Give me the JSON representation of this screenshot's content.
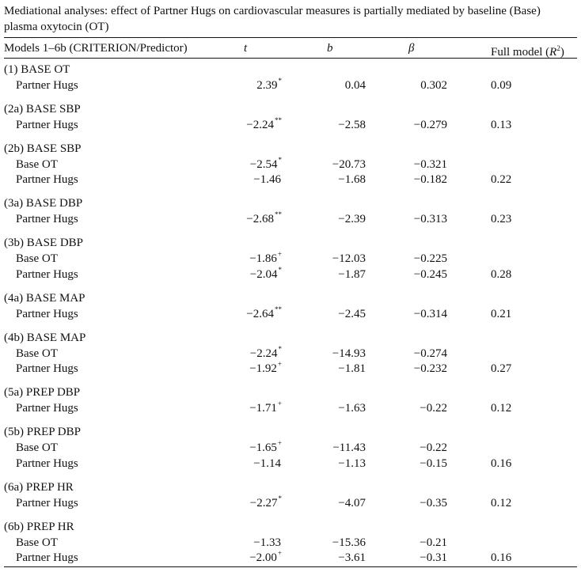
{
  "caption": "Mediational analyses: effect of Partner Hugs on cardiovascular measures is partially mediated by baseline (Base) plasma oxytocin (OT)",
  "headers": {
    "models": "Models 1–6b (CRITERION/Predictor)",
    "t": "t",
    "b": "b",
    "beta": "β",
    "r2_prefix": "Full model (",
    "r2_r": "R",
    "r2_sup": "2",
    "r2_suffix": ")"
  },
  "groups": [
    {
      "label": "(1) BASE OT",
      "rows": [
        {
          "predictor": "Partner Hugs",
          "t": "2.39",
          "sig": "*",
          "b": "0.04",
          "beta": "0.302",
          "r2": "0.09"
        }
      ]
    },
    {
      "label": "(2a) BASE SBP",
      "rows": [
        {
          "predictor": "Partner Hugs",
          "t": "−2.24",
          "sig": "**",
          "b": "−2.58",
          "beta": "−0.279",
          "r2": "0.13"
        }
      ]
    },
    {
      "label": "(2b) BASE SBP",
      "rows": [
        {
          "predictor": "Base OT",
          "t": "−2.54",
          "sig": "*",
          "b": "−20.73",
          "beta": "−0.321",
          "r2": ""
        },
        {
          "predictor": "Partner Hugs",
          "t": "−1.46",
          "sig": "",
          "b": "−1.68",
          "beta": "−0.182",
          "r2": "0.22"
        }
      ]
    },
    {
      "label": "(3a) BASE DBP",
      "rows": [
        {
          "predictor": "Partner Hugs",
          "t": "−2.68",
          "sig": "**",
          "b": "−2.39",
          "beta": "−0.313",
          "r2": "0.23"
        }
      ]
    },
    {
      "label": "(3b) BASE DBP",
      "rows": [
        {
          "predictor": "Base OT",
          "t": "−1.86",
          "sig": "+",
          "b": "−12.03",
          "beta": "−0.225",
          "r2": ""
        },
        {
          "predictor": "Partner Hugs",
          "t": "−2.04",
          "sig": "*",
          "b": "−1.87",
          "beta": "−0.245",
          "r2": "0.28"
        }
      ]
    },
    {
      "label": "(4a) BASE MAP",
      "rows": [
        {
          "predictor": "Partner Hugs",
          "t": "−2.64",
          "sig": "**",
          "b": "−2.45",
          "beta": "−0.314",
          "r2": "0.21"
        }
      ]
    },
    {
      "label": "(4b) BASE MAP",
      "rows": [
        {
          "predictor": "Base OT",
          "t": "−2.24",
          "sig": "*",
          "b": "−14.93",
          "beta": "−0.274",
          "r2": ""
        },
        {
          "predictor": "Partner Hugs",
          "t": "−1.92",
          "sig": "+",
          "b": "−1.81",
          "beta": "−0.232",
          "r2": "0.27"
        }
      ]
    },
    {
      "label": "(5a) PREP DBP",
      "rows": [
        {
          "predictor": "Partner Hugs",
          "t": "−1.71",
          "sig": "+",
          "b": "−1.63",
          "beta": "−0.22",
          "r2": "0.12"
        }
      ]
    },
    {
      "label": "(5b) PREP DBP",
      "rows": [
        {
          "predictor": "Base OT",
          "t": "−1.65",
          "sig": "+",
          "b": "−11.43",
          "beta": "−0.22",
          "r2": ""
        },
        {
          "predictor": "Partner Hugs",
          "t": "−1.14",
          "sig": "",
          "b": "−1.13",
          "beta": "−0.15",
          "r2": "0.16"
        }
      ]
    },
    {
      "label": "(6a) PREP HR",
      "rows": [
        {
          "predictor": "Partner Hugs",
          "t": "−2.27",
          "sig": "*",
          "b": "−4.07",
          "beta": "−0.35",
          "r2": "0.12"
        }
      ]
    },
    {
      "label": "(6b) PREP HR",
      "rows": [
        {
          "predictor": "Base OT",
          "t": "−1.33",
          "sig": "",
          "b": "−15.36",
          "beta": "−0.21",
          "r2": ""
        },
        {
          "predictor": "Partner Hugs",
          "t": "−2.00",
          "sig": "+",
          "b": "−3.61",
          "beta": "−0.31",
          "r2": "0.16"
        }
      ]
    }
  ]
}
